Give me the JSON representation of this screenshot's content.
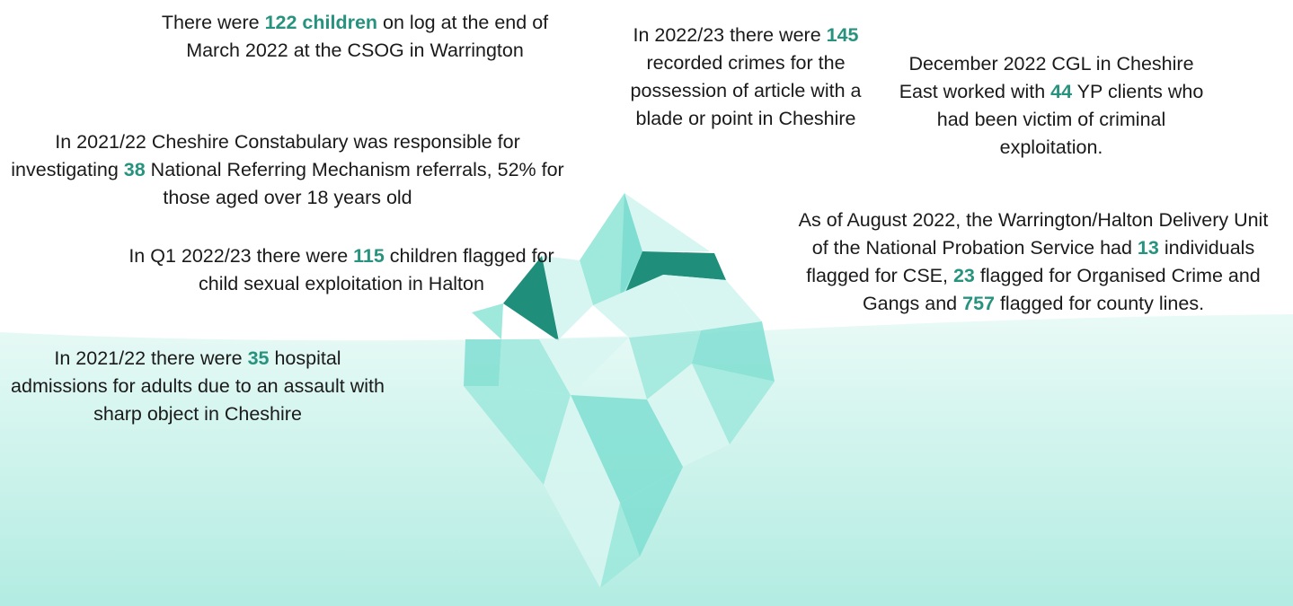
{
  "colors": {
    "highlight": "#27937f",
    "water_top": "#e9faf6",
    "water_bottom": "#b2ece2",
    "ice_light": "#d8f6f1",
    "ice_mid": "#9ee8dc",
    "ice_base": "#7fded1",
    "ice_dark": "#1f8f7b",
    "text": "#1a1a1a"
  },
  "callouts": [
    {
      "id": "csog",
      "segments": [
        {
          "t": "There were "
        },
        {
          "t": "122 children",
          "hl": true
        },
        {
          "t": " on log at the end of March 2022 at the CSOG in Warrington"
        }
      ]
    },
    {
      "id": "nrm",
      "segments": [
        {
          "t": "In 2021/22 Cheshire Constabulary was responsible for investigating "
        },
        {
          "t": "38",
          "hl": true
        },
        {
          "t": " National Referring Mechanism referrals, 52% for those aged over 18 years old"
        }
      ]
    },
    {
      "id": "cse-halton",
      "segments": [
        {
          "t": "In Q1 2022/23 there were "
        },
        {
          "t": "115",
          "hl": true
        },
        {
          "t": " children flagged for child sexual exploitation in Halton"
        }
      ]
    },
    {
      "id": "hospital",
      "segments": [
        {
          "t": "In 2021/22 there were "
        },
        {
          "t": "35",
          "hl": true
        },
        {
          "t": " hospital admissions for adults due to an assault with sharp object in Cheshire"
        }
      ]
    },
    {
      "id": "blade",
      "segments": [
        {
          "t": "In 2022/23 there were "
        },
        {
          "t": "145",
          "hl": true
        },
        {
          "t": " recorded crimes for the possession of article with a blade or point in Cheshire"
        }
      ]
    },
    {
      "id": "cgl",
      "segments": [
        {
          "t": "December 2022 CGL in Cheshire East worked with "
        },
        {
          "t": "44",
          "hl": true
        },
        {
          "t": " YP clients who had been victim of criminal exploitation."
        }
      ]
    },
    {
      "id": "probation",
      "segments": [
        {
          "t": "As of August 2022, the Warrington/Halton Delivery Unit of the National Probation Service had "
        },
        {
          "t": "13",
          "hl": true
        },
        {
          "t": " individuals flagged for CSE, "
        },
        {
          "t": "23",
          "hl": true
        },
        {
          "t": " flagged for Organised Crime and Gangs and "
        },
        {
          "t": "757",
          "hl": true
        },
        {
          "t": " flagged for county lines."
        }
      ]
    }
  ]
}
